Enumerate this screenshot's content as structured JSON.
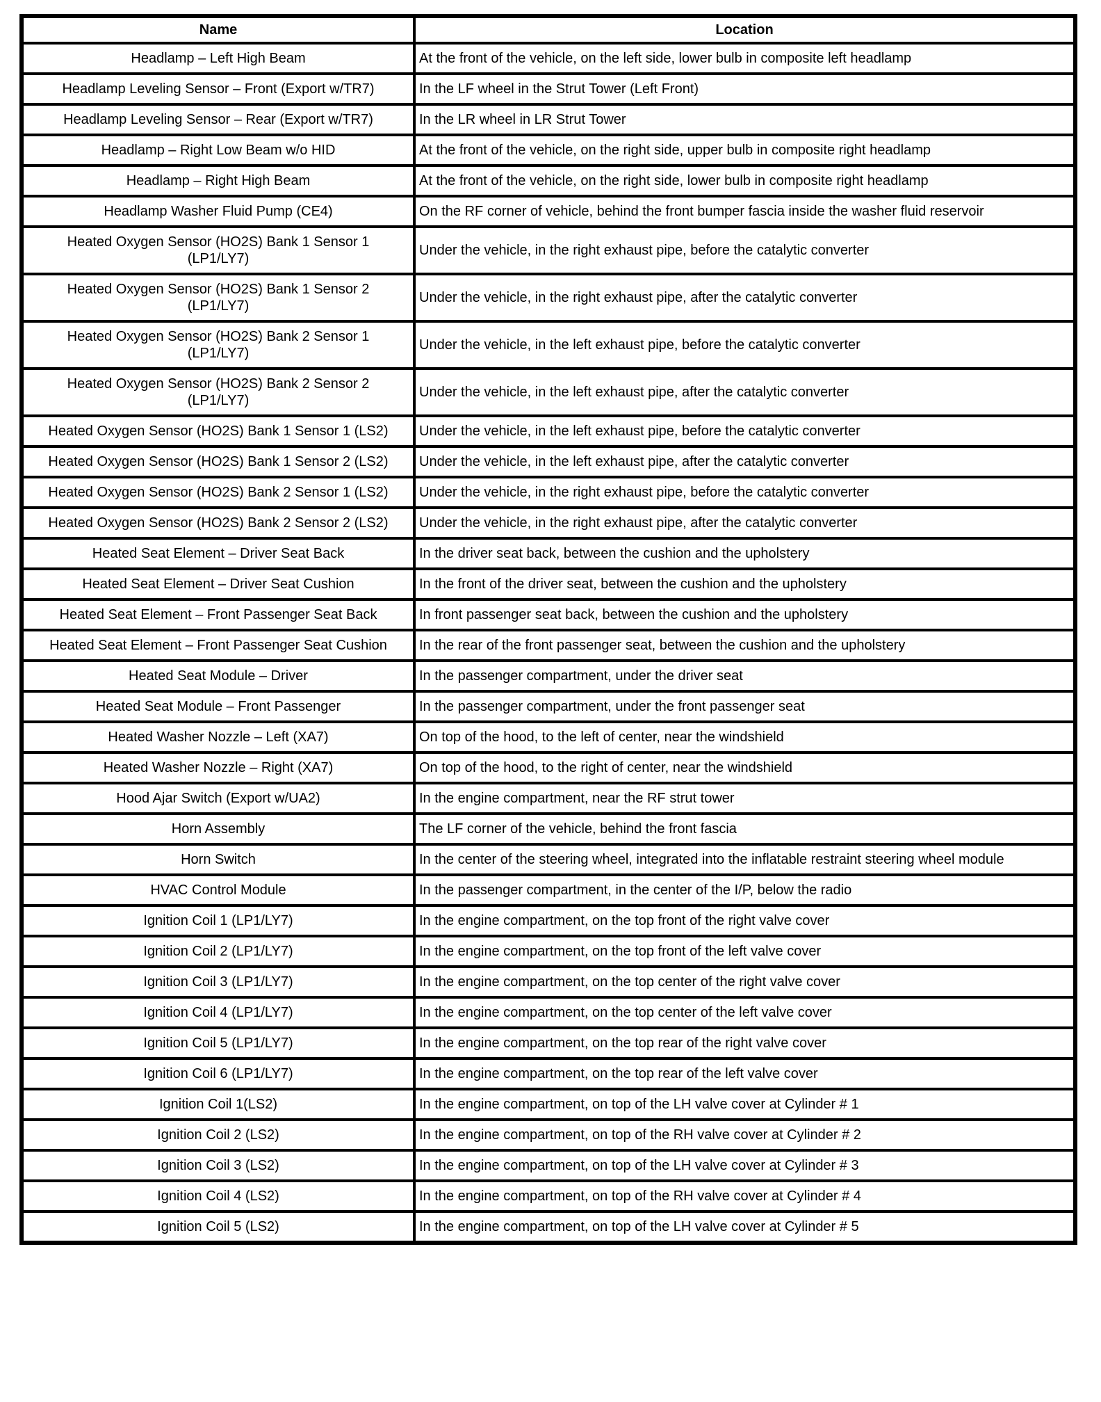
{
  "table": {
    "columns": [
      "Name",
      "Location"
    ],
    "rows": [
      {
        "name": "Headlamp – Left High Beam",
        "location": "At the front of the vehicle, on the left side, lower bulb in composite left headlamp"
      },
      {
        "name": "Headlamp Leveling Sensor – Front (Export w/TR7)",
        "location": "In the LF wheel in the Strut Tower (Left Front)"
      },
      {
        "name": "Headlamp Leveling Sensor – Rear (Export w/TR7)",
        "location": "In the LR wheel in LR Strut Tower"
      },
      {
        "name": "Headlamp – Right Low Beam w/o HID",
        "location": "At the front of the vehicle, on the right side, upper bulb in composite right headlamp"
      },
      {
        "name": "Headlamp – Right High Beam",
        "location": "At the front of the vehicle, on the right side, lower bulb in composite right headlamp"
      },
      {
        "name": "Headlamp Washer Fluid Pump (CE4)",
        "location": "On the RF corner of vehicle, behind the front bumper fascia inside the washer fluid reservoir"
      },
      {
        "name": "Heated Oxygen Sensor (HO2S) Bank 1 Sensor 1 (LP1/LY7)",
        "location": "Under the vehicle, in the right exhaust pipe, before the catalytic converter"
      },
      {
        "name": "Heated Oxygen Sensor (HO2S) Bank 1 Sensor 2 (LP1/LY7)",
        "location": "Under the vehicle, in the right exhaust pipe, after the catalytic converter"
      },
      {
        "name": "Heated Oxygen Sensor (HO2S) Bank 2 Sensor 1 (LP1/LY7)",
        "location": "Under the vehicle, in the left exhaust pipe, before the catalytic converter"
      },
      {
        "name": "Heated Oxygen Sensor (HO2S) Bank 2 Sensor 2 (LP1/LY7)",
        "location": "Under the vehicle, in the left exhaust pipe, after the catalytic converter"
      },
      {
        "name": "Heated Oxygen Sensor (HO2S) Bank 1 Sensor 1 (LS2)",
        "location": "Under the vehicle, in the left exhaust pipe, before the catalytic converter"
      },
      {
        "name": "Heated Oxygen Sensor (HO2S) Bank 1 Sensor 2 (LS2)",
        "location": "Under the vehicle, in the left exhaust pipe, after the catalytic converter"
      },
      {
        "name": "Heated Oxygen Sensor (HO2S) Bank 2 Sensor 1 (LS2)",
        "location": "Under the vehicle, in the right exhaust pipe, before the catalytic converter"
      },
      {
        "name": "Heated Oxygen Sensor (HO2S) Bank 2 Sensor 2 (LS2)",
        "location": "Under the vehicle, in the right exhaust pipe, after the catalytic converter"
      },
      {
        "name": "Heated Seat Element – Driver Seat Back",
        "location": "In the driver seat back, between the cushion and the upholstery"
      },
      {
        "name": "Heated Seat Element – Driver Seat Cushion",
        "location": "In the front of the driver seat, between the cushion and the upholstery"
      },
      {
        "name": "Heated Seat Element – Front Passenger Seat Back",
        "location": "In front passenger seat back, between the cushion and the upholstery"
      },
      {
        "name": "Heated Seat Element – Front Passenger Seat Cushion",
        "location": "In the rear of the front passenger seat, between the cushion and the upholstery"
      },
      {
        "name": "Heated Seat Module – Driver",
        "location": "In the passenger compartment, under the driver seat"
      },
      {
        "name": "Heated Seat Module – Front Passenger",
        "location": "In the passenger compartment, under the front passenger seat"
      },
      {
        "name": "Heated Washer Nozzle – Left (XA7)",
        "location": "On top of the hood, to the left of center, near the windshield"
      },
      {
        "name": "Heated Washer Nozzle – Right (XA7)",
        "location": "On top of the hood, to the right of center, near the windshield"
      },
      {
        "name": "Hood Ajar Switch (Export w/UA2)",
        "location": "In the engine compartment, near the RF strut tower"
      },
      {
        "name": "Horn Assembly",
        "location": "The LF corner of the vehicle, behind the front fascia"
      },
      {
        "name": "Horn Switch",
        "location": "In the center of the steering wheel, integrated into the inflatable restraint steering wheel module"
      },
      {
        "name": "HVAC Control Module",
        "location": "In the passenger compartment, in the center of the I/P, below the radio"
      },
      {
        "name": "Ignition Coil 1 (LP1/LY7)",
        "location": "In the engine compartment, on the top front of the right valve cover"
      },
      {
        "name": "Ignition Coil 2 (LP1/LY7)",
        "location": "In the engine compartment, on the top front of the left valve cover"
      },
      {
        "name": "Ignition Coil 3 (LP1/LY7)",
        "location": "In the engine compartment, on the top center of the right valve cover"
      },
      {
        "name": "Ignition Coil 4 (LP1/LY7)",
        "location": "In the engine compartment, on the top center of the left valve cover"
      },
      {
        "name": "Ignition Coil 5 (LP1/LY7)",
        "location": "In the engine compartment, on the top rear of the right valve cover"
      },
      {
        "name": "Ignition Coil 6 (LP1/LY7)",
        "location": "In the engine compartment, on the top rear of the left valve cover"
      },
      {
        "name": "Ignition Coil 1(LS2)",
        "location": "In the engine compartment, on top of the LH valve cover at Cylinder # 1"
      },
      {
        "name": "Ignition Coil 2 (LS2)",
        "location": "In the engine compartment, on top of the RH valve cover at Cylinder # 2"
      },
      {
        "name": "Ignition Coil 3 (LS2)",
        "location": "In the engine compartment, on top of the LH valve cover at Cylinder # 3"
      },
      {
        "name": "Ignition Coil 4 (LS2)",
        "location": "In the engine compartment, on top of the RH valve cover at Cylinder # 4"
      },
      {
        "name": "Ignition Coil 5 (LS2)",
        "location": "In the engine compartment, on top of the LH valve cover at Cylinder # 5"
      }
    ]
  }
}
